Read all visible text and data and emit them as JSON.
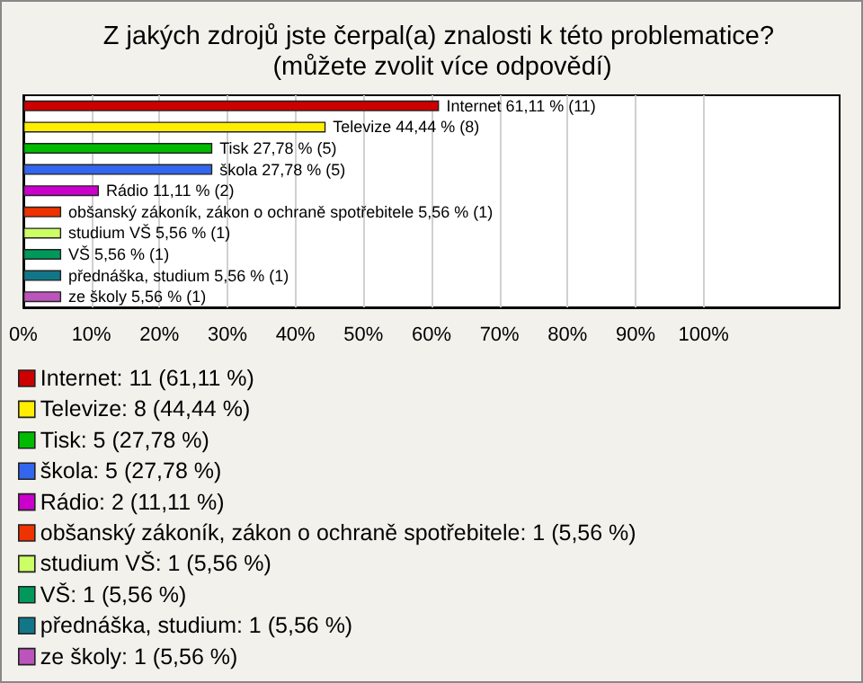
{
  "chart_data": {
    "type": "bar",
    "orientation": "horizontal",
    "stacked": true,
    "title": "Z jakých zdrojů jste čerpal(a) znalosti k této problematice? (můžete zvolit více odpovědí)",
    "categories": [
      null,
      null,
      null,
      null,
      null,
      null,
      null,
      null,
      null,
      null
    ],
    "series": [
      {
        "name": "Internet: 11 (61,11 %)",
        "color": "#cc0000",
        "values": [
          61.11,
          null,
          null,
          null,
          null,
          null,
          null,
          null,
          null,
          null
        ],
        "value_labels": [
          "Internet 61,11 % (11)",
          null,
          null,
          null,
          null,
          null,
          null,
          null,
          null,
          null
        ]
      },
      {
        "name": "Televize: 8 (44,44 %)",
        "color": "#ffee00",
        "values": [
          null,
          44.44,
          null,
          null,
          null,
          null,
          null,
          null,
          null,
          null
        ],
        "value_labels": [
          null,
          "Televize 44,44 % (8)",
          null,
          null,
          null,
          null,
          null,
          null,
          null,
          null
        ]
      },
      {
        "name": "Tisk: 5 (27,78 %)",
        "color": "#00bb00",
        "values": [
          null,
          null,
          27.78,
          null,
          null,
          null,
          null,
          null,
          null,
          null
        ],
        "value_labels": [
          null,
          null,
          "Tisk 27,78 % (5)",
          null,
          null,
          null,
          null,
          null,
          null,
          null
        ]
      },
      {
        "name": "škola: 5 (27,78 %)",
        "color": "#3366ee",
        "values": [
          null,
          null,
          null,
          27.78,
          null,
          null,
          null,
          null,
          null,
          null
        ],
        "value_labels": [
          null,
          null,
          null,
          "škola 27,78 % (5)",
          null,
          null,
          null,
          null,
          null,
          null
        ]
      },
      {
        "name": "Rádio: 2 (11,11 %)",
        "color": "#cc00cc",
        "values": [
          null,
          null,
          null,
          null,
          11.11,
          null,
          null,
          null,
          null,
          null
        ],
        "value_labels": [
          null,
          null,
          null,
          null,
          "Rádio 11,11 % (2)",
          null,
          null,
          null,
          null,
          null
        ]
      },
      {
        "name": "obšanský zákoník, zákon o ochraně spotřebitele: 1 (5,56 %)",
        "color": "#ee3300",
        "values": [
          null,
          null,
          null,
          null,
          null,
          5.56,
          null,
          null,
          null,
          null
        ],
        "value_labels": [
          null,
          null,
          null,
          null,
          null,
          "obšanský zákoník, zákon o ochraně spotřebitele 5,56 % (1)",
          null,
          null,
          null,
          null
        ]
      },
      {
        "name": "studium VŠ: 1 (5,56 %)",
        "color": "#ccff66",
        "values": [
          null,
          null,
          null,
          null,
          null,
          null,
          5.56,
          null,
          null,
          null
        ],
        "value_labels": [
          null,
          null,
          null,
          null,
          null,
          null,
          "studium VŠ 5,56 % (1)",
          null,
          null,
          null
        ]
      },
      {
        "name": "VŠ: 1 (5,56 %)",
        "color": "#00995a",
        "values": [
          null,
          null,
          null,
          null,
          null,
          null,
          null,
          5.56,
          null,
          null
        ],
        "value_labels": [
          null,
          null,
          null,
          null,
          null,
          null,
          null,
          "VŠ 5,56 % (1)",
          null,
          null
        ]
      },
      {
        "name": "přednáška, studium: 1 (5,56 %)",
        "color": "#117788",
        "values": [
          null,
          null,
          null,
          null,
          null,
          null,
          null,
          null,
          5.56,
          null
        ],
        "value_labels": [
          null,
          null,
          null,
          null,
          null,
          null,
          null,
          null,
          "přednáška, studium 5,56 % (1)",
          null
        ]
      },
      {
        "name": "ze školy: 1 (5,56 %)",
        "color": "#bb55bb",
        "values": [
          null,
          null,
          null,
          null,
          null,
          null,
          null,
          null,
          null,
          5.56
        ],
        "value_labels": [
          null,
          null,
          null,
          null,
          null,
          null,
          null,
          null,
          null,
          "ze školy 5,56 % (1)"
        ]
      }
    ],
    "xlim": [
      0,
      120
    ],
    "xticks": [
      {
        "value": 0,
        "label": "0%"
      },
      {
        "value": 10,
        "label": "10%"
      },
      {
        "value": 20,
        "label": "20%"
      },
      {
        "value": 30,
        "label": "30%"
      },
      {
        "value": 40,
        "label": "40%"
      },
      {
        "value": 50,
        "label": "50%"
      },
      {
        "value": 60,
        "label": "60%"
      },
      {
        "value": 70,
        "label": "70%"
      },
      {
        "value": 80,
        "label": "80%"
      },
      {
        "value": 90,
        "label": "90%"
      },
      {
        "value": 100,
        "label": "100%"
      }
    ],
    "grid": "x",
    "legend": "bottom"
  }
}
